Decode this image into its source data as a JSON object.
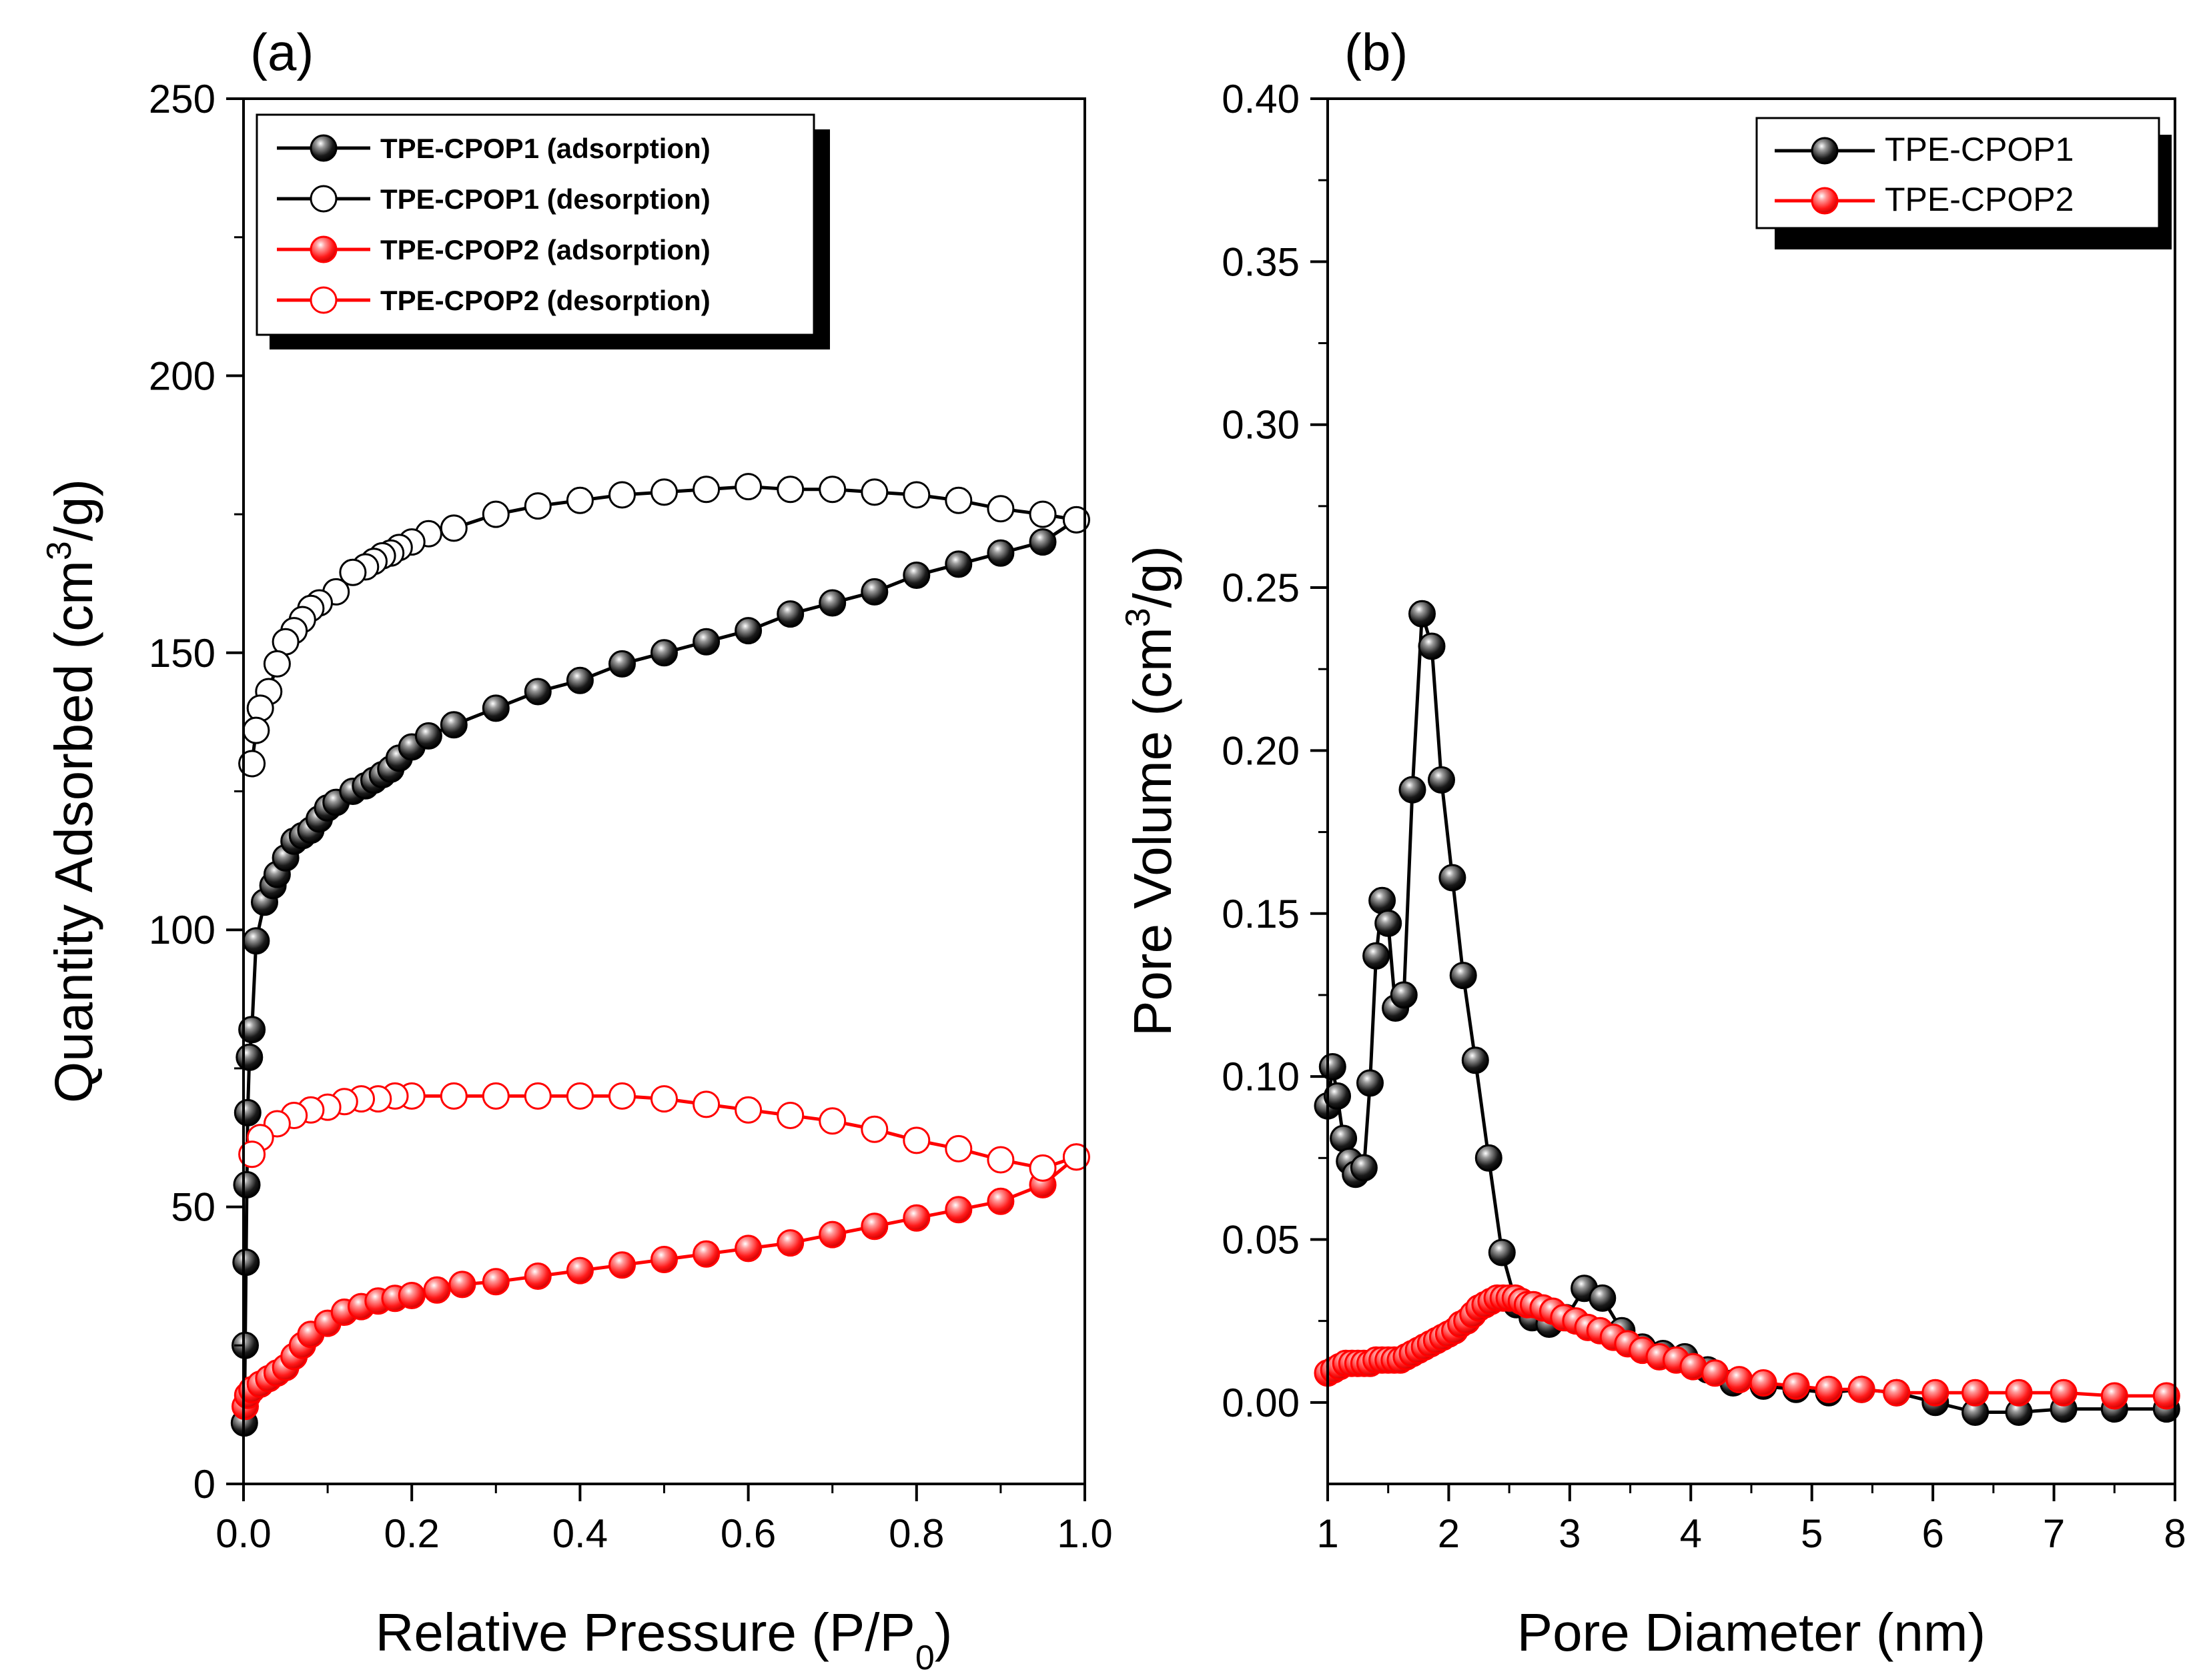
{
  "colors": {
    "black": "#000000",
    "red": "#ff0000",
    "white": "#ffffff"
  },
  "chart_data": [
    {
      "type": "line",
      "panel_label": "(a)",
      "title": "",
      "xlabel": "Relative Pressure (P/P",
      "xlabel_sub": "0",
      "xlabel_end": ")",
      "ylabel": "Quantity Adsorbed (cm",
      "ylabel_sup": "3",
      "ylabel_end": "/g)",
      "xlim": [
        0,
        1.0
      ],
      "ylim": [
        0,
        250
      ],
      "xticks": [
        "0.0",
        "0.2",
        "0.4",
        "0.6",
        "0.8",
        "1.0"
      ],
      "yticks": [
        "0",
        "50",
        "100",
        "150",
        "200",
        "250"
      ],
      "legend_position": "top-left",
      "series": [
        {
          "name": "TPE-CPOP1 (adsorption)",
          "color": "#000000",
          "filled": true,
          "x": [
            0.001,
            0.002,
            0.003,
            0.004,
            0.005,
            0.007,
            0.01,
            0.015,
            0.025,
            0.035,
            0.04,
            0.05,
            0.06,
            0.07,
            0.08,
            0.09,
            0.1,
            0.11,
            0.13,
            0.145,
            0.155,
            0.165,
            0.175,
            0.185,
            0.2,
            0.22,
            0.25,
            0.3,
            0.35,
            0.4,
            0.45,
            0.5,
            0.55,
            0.6,
            0.65,
            0.7,
            0.75,
            0.8,
            0.85,
            0.9,
            0.95,
            0.99
          ],
          "y": [
            11,
            25,
            40,
            54,
            67,
            77,
            82,
            98,
            105,
            108,
            110,
            113,
            116,
            117,
            118,
            120,
            122,
            123,
            125,
            126,
            127,
            128,
            129,
            131,
            133,
            135,
            137,
            140,
            143,
            145,
            148,
            150,
            152,
            154,
            157,
            159,
            161,
            164,
            166,
            168,
            170,
            174
          ]
        },
        {
          "name": "TPE-CPOP1 (desorption)",
          "color": "#000000",
          "filled": false,
          "x": [
            0.99,
            0.95,
            0.9,
            0.85,
            0.8,
            0.75,
            0.7,
            0.65,
            0.6,
            0.55,
            0.5,
            0.45,
            0.4,
            0.35,
            0.3,
            0.25,
            0.22,
            0.2,
            0.185,
            0.175,
            0.165,
            0.155,
            0.145,
            0.13,
            0.11,
            0.09,
            0.08,
            0.07,
            0.06,
            0.05,
            0.04,
            0.03,
            0.02,
            0.015,
            0.01
          ],
          "y": [
            174,
            175,
            176,
            177.5,
            178.5,
            179,
            179.5,
            179.5,
            180,
            179.5,
            179,
            178.5,
            177.5,
            176.5,
            175,
            172.5,
            171.5,
            170,
            169,
            168,
            167.5,
            166.5,
            165.5,
            164.5,
            161,
            159,
            158,
            156,
            154,
            152,
            148,
            143,
            140,
            136,
            130
          ]
        },
        {
          "name": "TPE-CPOP2 (adsorption)",
          "color": "#ff0000",
          "filled": true,
          "x": [
            0.002,
            0.005,
            0.01,
            0.02,
            0.03,
            0.04,
            0.05,
            0.06,
            0.07,
            0.08,
            0.1,
            0.12,
            0.14,
            0.16,
            0.18,
            0.2,
            0.23,
            0.26,
            0.3,
            0.35,
            0.4,
            0.45,
            0.5,
            0.55,
            0.6,
            0.65,
            0.7,
            0.75,
            0.8,
            0.85,
            0.9,
            0.95,
            0.99
          ],
          "y": [
            14,
            16,
            17,
            18,
            19,
            20,
            21,
            23,
            25,
            27,
            29,
            31,
            32,
            33,
            33.5,
            34,
            35,
            36,
            36.5,
            37.5,
            38.5,
            39.5,
            40.5,
            41.5,
            42.5,
            43.5,
            45,
            46.5,
            48,
            49.5,
            51,
            54,
            59
          ]
        },
        {
          "name": "TPE-CPOP2 (desorption)",
          "color": "#ff0000",
          "filled": false,
          "x": [
            0.99,
            0.95,
            0.9,
            0.85,
            0.8,
            0.75,
            0.7,
            0.65,
            0.6,
            0.55,
            0.5,
            0.45,
            0.4,
            0.35,
            0.3,
            0.25,
            0.2,
            0.18,
            0.16,
            0.14,
            0.12,
            0.1,
            0.08,
            0.06,
            0.04,
            0.02,
            0.01
          ],
          "y": [
            59,
            57,
            58.5,
            60.5,
            62,
            64,
            65.5,
            66.5,
            67.5,
            68.5,
            69.5,
            70,
            70,
            70,
            70,
            70,
            70,
            70,
            69.5,
            69.5,
            69,
            68,
            67.5,
            66.5,
            65,
            62.5,
            59.5
          ]
        }
      ]
    },
    {
      "type": "line",
      "panel_label": "(b)",
      "title": "",
      "xlabel": "Pore Diameter (nm)",
      "ylabel": "Pore Volume (cm",
      "ylabel_sup": "3",
      "ylabel_end": "/g)",
      "xlim": [
        1,
        8
      ],
      "ylim": [
        -0.025,
        0.4
      ],
      "xticks": [
        "1",
        "2",
        "3",
        "4",
        "5",
        "6",
        "7",
        "8"
      ],
      "yticks": [
        "0.00",
        "0.05",
        "0.10",
        "0.15",
        "0.20",
        "0.25",
        "0.30",
        "0.35",
        "0.40"
      ],
      "legend_position": "top-right",
      "series": [
        {
          "name": "TPE-CPOP1",
          "color": "#000000",
          "filled": true,
          "x": [
            1.0,
            1.04,
            1.08,
            1.13,
            1.18,
            1.23,
            1.3,
            1.35,
            1.4,
            1.45,
            1.5,
            1.56,
            1.63,
            1.7,
            1.78,
            1.86,
            1.94,
            2.03,
            2.12,
            2.22,
            2.33,
            2.44,
            2.56,
            2.69,
            2.83,
            2.97,
            3.12,
            3.27,
            3.43,
            3.6,
            3.77,
            3.95,
            4.14,
            4.35,
            4.6,
            4.87,
            5.14,
            5.41,
            5.7,
            6.02,
            6.35,
            6.71,
            7.08,
            7.5,
            7.93
          ],
          "y": [
            0.091,
            0.103,
            0.094,
            0.081,
            0.074,
            0.07,
            0.072,
            0.098,
            0.137,
            0.154,
            0.147,
            0.121,
            0.125,
            0.188,
            0.242,
            0.232,
            0.191,
            0.161,
            0.131,
            0.105,
            0.075,
            0.046,
            0.03,
            0.026,
            0.024,
            0.026,
            0.035,
            0.032,
            0.022,
            0.017,
            0.015,
            0.014,
            0.01,
            0.006,
            0.005,
            0.004,
            0.003,
            0.004,
            0.003,
            0.0,
            -0.003,
            -0.003,
            -0.002,
            -0.002,
            -0.002
          ]
        },
        {
          "name": "TPE-CPOP2",
          "color": "#ff0000",
          "filled": true,
          "x": [
            1.0,
            1.05,
            1.1,
            1.15,
            1.2,
            1.25,
            1.3,
            1.35,
            1.4,
            1.45,
            1.5,
            1.55,
            1.6,
            1.65,
            1.7,
            1.75,
            1.8,
            1.85,
            1.9,
            1.95,
            2.0,
            2.05,
            2.1,
            2.15,
            2.2,
            2.25,
            2.3,
            2.35,
            2.4,
            2.45,
            2.5,
            2.55,
            2.6,
            2.65,
            2.7,
            2.78,
            2.86,
            2.95,
            3.05,
            3.15,
            3.25,
            3.36,
            3.48,
            3.6,
            3.74,
            3.88,
            4.02,
            4.2,
            4.4,
            4.6,
            4.87,
            5.14,
            5.41,
            5.7,
            6.02,
            6.35,
            6.71,
            7.08,
            7.5,
            7.93
          ],
          "y": [
            0.009,
            0.01,
            0.011,
            0.012,
            0.012,
            0.012,
            0.012,
            0.012,
            0.013,
            0.013,
            0.013,
            0.013,
            0.013,
            0.014,
            0.015,
            0.016,
            0.017,
            0.018,
            0.019,
            0.02,
            0.021,
            0.022,
            0.024,
            0.025,
            0.027,
            0.029,
            0.03,
            0.031,
            0.032,
            0.032,
            0.032,
            0.032,
            0.031,
            0.03,
            0.03,
            0.029,
            0.028,
            0.026,
            0.025,
            0.023,
            0.022,
            0.02,
            0.018,
            0.016,
            0.014,
            0.013,
            0.011,
            0.009,
            0.007,
            0.006,
            0.005,
            0.004,
            0.004,
            0.003,
            0.003,
            0.003,
            0.003,
            0.003,
            0.002,
            0.002
          ]
        }
      ]
    }
  ]
}
